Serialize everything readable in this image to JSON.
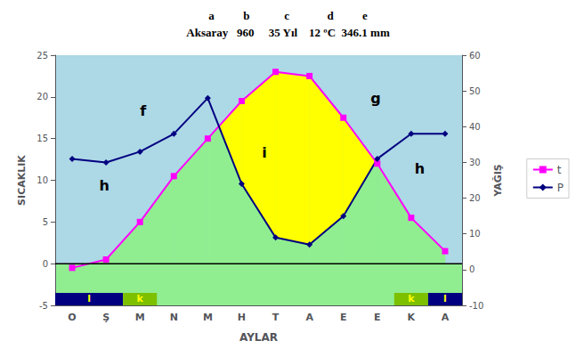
{
  "chart_data": {
    "type": "line",
    "title": "a          b            c             d          e",
    "subtitle": "Aksaray   960     35 Yıl    12 ºC  346.1 mm",
    "categories": [
      "O",
      "Ş",
      "M",
      "N",
      "M",
      "H",
      "T",
      "A",
      "E",
      "E",
      "K",
      "A"
    ],
    "series": [
      {
        "name": "t",
        "color": "#ff00ff",
        "marker": "square",
        "values": [
          -0.5,
          0.5,
          5.0,
          10.5,
          15.0,
          19.5,
          23.0,
          22.5,
          17.5,
          12.0,
          5.5,
          1.5
        ]
      },
      {
        "name": "P",
        "color": "#000080",
        "marker": "diamond",
        "axis": "y2",
        "values": [
          31,
          30,
          33,
          38,
          48,
          24,
          9,
          7,
          15,
          31,
          38,
          38
        ]
      }
    ],
    "xlabel": "AYLAR",
    "ylabel": "SICAKLIK",
    "y2label": "YAĞIŞ",
    "ylim": [
      -5,
      25
    ],
    "yticks": [
      -5,
      0,
      5,
      10,
      15,
      20,
      25
    ],
    "y2lim": [
      -10,
      60
    ],
    "y2ticks": [
      -10,
      0,
      10,
      20,
      30,
      40,
      50,
      60
    ],
    "grid": false,
    "legend": "right",
    "background": [
      {
        "y": [
          0,
          25
        ],
        "color": "#add8e6"
      },
      {
        "y": [
          -5,
          0
        ],
        "color": "#90ee90"
      }
    ],
    "fills": [
      {
        "between": [
          0,
          "t"
        ],
        "color": "#90ee90"
      },
      {
        "between": [
          "P",
          "t"
        ],
        "color": "#ffff00"
      }
    ],
    "hlines": [
      0
    ],
    "bands": [
      {
        "label": "l",
        "color": "#000080",
        "label_color": "#ffff00",
        "x": [
          -0.5,
          1.5
        ],
        "y": [
          -5,
          -3.5
        ]
      },
      {
        "label": "k",
        "color": "#7dc000",
        "label_color": "#ffff00",
        "x": [
          1.5,
          2.5
        ],
        "y": [
          -5,
          -3.5
        ]
      },
      {
        "label": "k",
        "color": "#7dc000",
        "label_color": "#ffff00",
        "x": [
          9.5,
          10.5
        ],
        "y": [
          -5,
          -3.5
        ]
      },
      {
        "label": "l",
        "color": "#000080",
        "label_color": "#ffff00",
        "x": [
          10.5,
          11.5
        ],
        "y": [
          -5,
          -3.5
        ]
      }
    ],
    "annotations": [
      {
        "text": "f",
        "x": 2.0,
        "y": 17.5
      },
      {
        "text": "g",
        "x": 8.8,
        "y": 19.0
      },
      {
        "text": "h",
        "x": 0.8,
        "y": 8.5
      },
      {
        "text": "h",
        "x": 10.1,
        "y": 10.5
      },
      {
        "text": "i",
        "x": 5.6,
        "y": 12.5
      }
    ]
  }
}
